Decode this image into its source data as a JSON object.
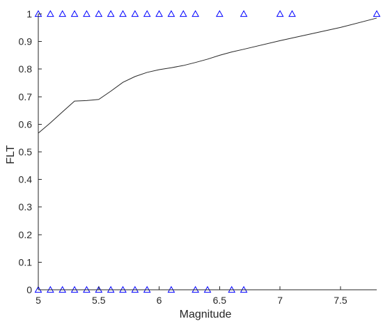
{
  "chart_data": {
    "type": "scatter",
    "xlabel": "Magnitude",
    "ylabel": "FLT",
    "xlim": [
      5,
      7.8
    ],
    "ylim": [
      0,
      1
    ],
    "xticks": [
      "5",
      "5.5",
      "6",
      "6.5",
      "7",
      "7.5"
    ],
    "yticks": [
      "0",
      "0.1",
      "0.2",
      "0.3",
      "0.4",
      "0.5",
      "0.6",
      "0.7",
      "0.8",
      "0.9",
      "1"
    ],
    "grid": false,
    "series": [
      {
        "kind": "markers",
        "marker": "triangle",
        "color": "#0000ff",
        "points": [
          {
            "x": 5.0,
            "y": 1
          },
          {
            "x": 5.1,
            "y": 1
          },
          {
            "x": 5.2,
            "y": 1
          },
          {
            "x": 5.3,
            "y": 1
          },
          {
            "x": 5.4,
            "y": 1
          },
          {
            "x": 5.5,
            "y": 1
          },
          {
            "x": 5.6,
            "y": 1
          },
          {
            "x": 5.7,
            "y": 1
          },
          {
            "x": 5.8,
            "y": 1
          },
          {
            "x": 5.9,
            "y": 1
          },
          {
            "x": 6.0,
            "y": 1
          },
          {
            "x": 6.1,
            "y": 1
          },
          {
            "x": 6.2,
            "y": 1
          },
          {
            "x": 6.3,
            "y": 1
          },
          {
            "x": 6.5,
            "y": 1
          },
          {
            "x": 6.7,
            "y": 1
          },
          {
            "x": 7.0,
            "y": 1
          },
          {
            "x": 7.1,
            "y": 1
          },
          {
            "x": 7.8,
            "y": 1
          },
          {
            "x": 5.0,
            "y": 0
          },
          {
            "x": 5.1,
            "y": 0
          },
          {
            "x": 5.2,
            "y": 0
          },
          {
            "x": 5.3,
            "y": 0
          },
          {
            "x": 5.4,
            "y": 0
          },
          {
            "x": 5.5,
            "y": 0
          },
          {
            "x": 5.6,
            "y": 0
          },
          {
            "x": 5.7,
            "y": 0
          },
          {
            "x": 5.8,
            "y": 0
          },
          {
            "x": 5.9,
            "y": 0
          },
          {
            "x": 6.1,
            "y": 0
          },
          {
            "x": 6.3,
            "y": 0
          },
          {
            "x": 6.4,
            "y": 0
          },
          {
            "x": 6.6,
            "y": 0
          },
          {
            "x": 6.7,
            "y": 0
          }
        ]
      },
      {
        "kind": "line",
        "color": "#262626",
        "points": [
          {
            "x": 5.0,
            "y": 0.568
          },
          {
            "x": 5.1,
            "y": 0.605
          },
          {
            "x": 5.2,
            "y": 0.645
          },
          {
            "x": 5.3,
            "y": 0.684
          },
          {
            "x": 5.4,
            "y": 0.686
          },
          {
            "x": 5.5,
            "y": 0.69
          },
          {
            "x": 5.6,
            "y": 0.72
          },
          {
            "x": 5.7,
            "y": 0.752
          },
          {
            "x": 5.8,
            "y": 0.773
          },
          {
            "x": 5.9,
            "y": 0.788
          },
          {
            "x": 6.0,
            "y": 0.798
          },
          {
            "x": 6.1,
            "y": 0.805
          },
          {
            "x": 6.2,
            "y": 0.813
          },
          {
            "x": 6.3,
            "y": 0.824
          },
          {
            "x": 6.4,
            "y": 0.836
          },
          {
            "x": 6.5,
            "y": 0.85
          },
          {
            "x": 6.6,
            "y": 0.862
          },
          {
            "x": 6.7,
            "y": 0.872
          },
          {
            "x": 7.0,
            "y": 0.903
          },
          {
            "x": 7.5,
            "y": 0.951
          },
          {
            "x": 7.8,
            "y": 0.985
          }
        ]
      }
    ]
  }
}
